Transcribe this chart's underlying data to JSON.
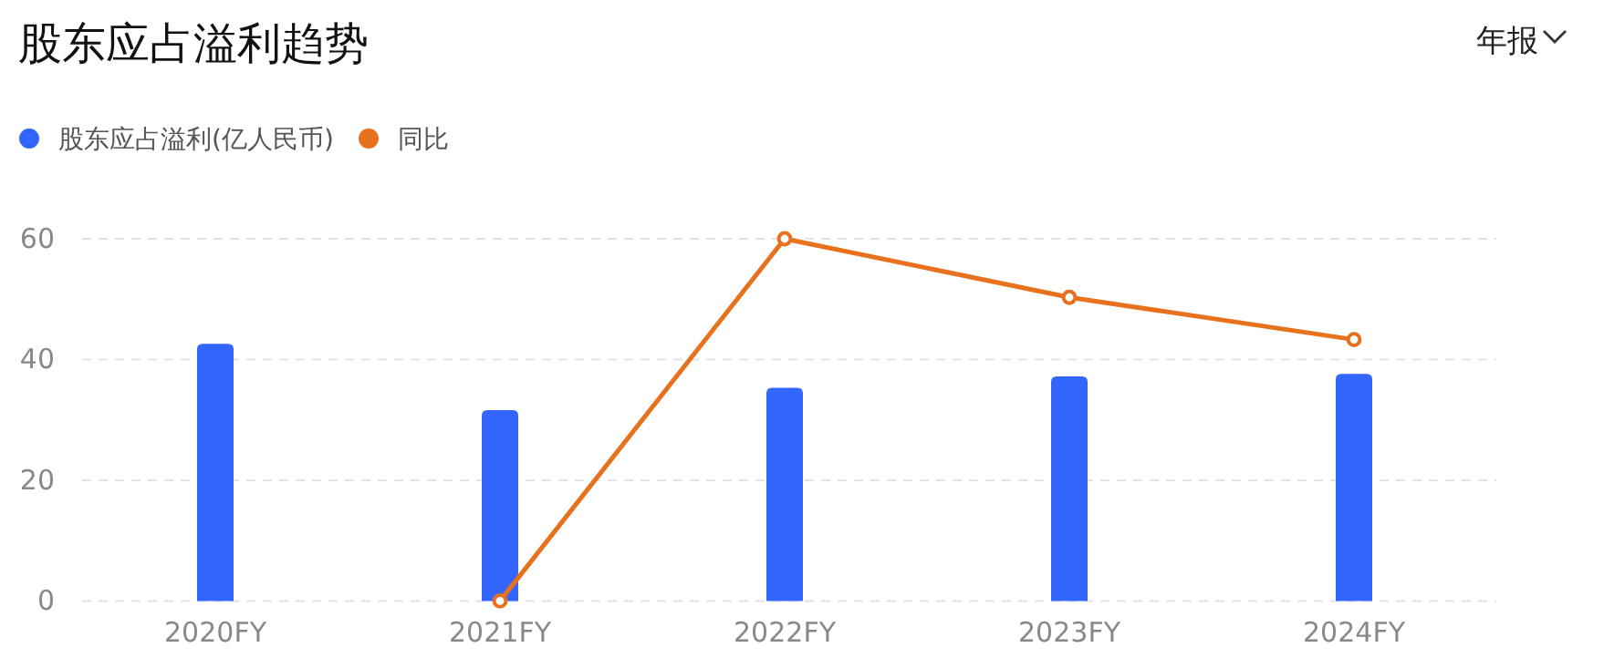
{
  "chart_data": {
    "type": "bar",
    "title": "股东应占溢利趋势",
    "annotations": [
      "年报"
    ],
    "categories": [
      "2020FY",
      "2021FY",
      "2022FY",
      "2023FY",
      "2024FY"
    ],
    "series": [
      {
        "name": "股东应占溢利(亿人民币)",
        "color": "#3366ff",
        "values": [
          42.6,
          31.6,
          35.3,
          37.2,
          37.6
        ]
      },
      {
        "name": "同比",
        "type": "line",
        "color": "#e8711e",
        "values": [
          null,
          0,
          60,
          50.3,
          43.3
        ]
      }
    ],
    "ylim": [
      0,
      60
    ],
    "yticks": [
      0,
      20,
      40,
      60
    ],
    "grid": "y",
    "legend": "top left",
    "marker": "circle"
  }
}
